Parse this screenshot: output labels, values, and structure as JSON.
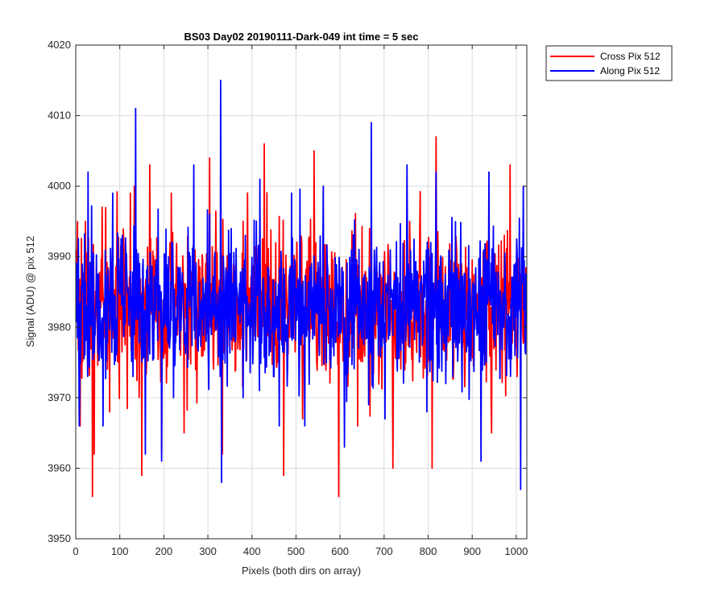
{
  "chart_data": {
    "type": "line",
    "title": "BS03 Day02 20190111-Dark-049 int time = 5 sec",
    "xlabel": "Pixels (both dirs on array)",
    "ylabel": "Signal (ADU) @ pix 512",
    "xlim": [
      0,
      1024
    ],
    "ylim": [
      3950,
      4020
    ],
    "xticks": [
      0,
      100,
      200,
      300,
      400,
      500,
      600,
      700,
      800,
      900,
      1000
    ],
    "yticks": [
      3950,
      3960,
      3970,
      3980,
      3990,
      4000,
      4010,
      4020
    ],
    "grid": true,
    "legend_position": "outside-top-right",
    "series": [
      {
        "name": "Cross Pix 512",
        "color": "#ff0000",
        "mean": 3983,
        "noise_seed": 7,
        "x": [
          0,
          10,
          22,
          38,
          42,
          60,
          77,
          100,
          124,
          133,
          150,
          168,
          195,
          217,
          246,
          304,
          333,
          380,
          428,
          472,
          515,
          541,
          597,
          640,
          667,
          720,
          758,
          809,
          818,
          876,
          944,
          986,
          1002,
          1023
        ],
        "y": [
          3983,
          3966,
          3995,
          3956,
          3962,
          3997,
          3968,
          3988,
          3999,
          4000,
          3959,
          4003,
          3962,
          3999,
          3965,
          4004,
          3962,
          3995,
          4006,
          3959,
          3967,
          4005,
          3956,
          3966,
          3994,
          3960,
          3995,
          3960,
          4007,
          3989,
          3965,
          4003,
          3973,
          3983
        ]
      },
      {
        "name": "Along Pix 512",
        "color": "#0000ff",
        "mean": 3983,
        "noise_seed": 19,
        "x": [
          0,
          8,
          28,
          62,
          84,
          136,
          158,
          195,
          222,
          268,
          296,
          329,
          331,
          380,
          418,
          462,
          490,
          520,
          562,
          610,
          665,
          671,
          702,
          752,
          797,
          818,
          840,
          920,
          938,
          1010,
          1016,
          1023
        ],
        "y": [
          3983,
          3966,
          4002,
          3966,
          3999,
          4011,
          3962,
          3961,
          3970,
          4003,
          3978,
          4015,
          3958,
          3970,
          4001,
          3966,
          3999,
          3966,
          4000,
          3963,
          3969,
          4009,
          3967,
          4003,
          3968,
          4002,
          3972,
          3961,
          4002,
          3957,
          4000,
          3983
        ]
      }
    ]
  }
}
